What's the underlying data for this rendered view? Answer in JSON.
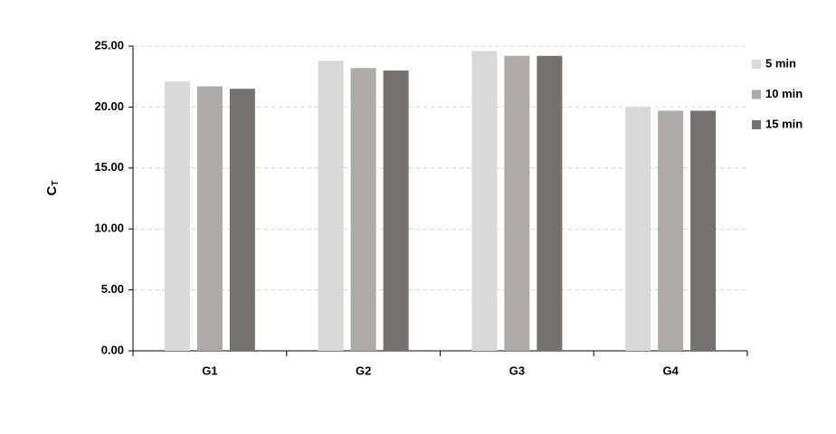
{
  "chart_data": {
    "type": "bar",
    "ylabel": {
      "main": "C",
      "sub": "T"
    },
    "categories": [
      "G1",
      "G2",
      "G3",
      "G4"
    ],
    "series": [
      {
        "name": "5 min",
        "color": "#d9d9d9",
        "values": [
          22.1,
          23.8,
          24.6,
          20.0
        ]
      },
      {
        "name": "10 min",
        "color": "#aeaaaa",
        "values": [
          21.7,
          23.2,
          24.2,
          19.7
        ]
      },
      {
        "name": "15 min",
        "color": "#767171",
        "values": [
          21.5,
          23.0,
          24.2,
          19.7
        ]
      }
    ],
    "ylim": [
      0,
      25
    ],
    "yticks": [
      {
        "value": 0,
        "label": "0.00"
      },
      {
        "value": 5,
        "label": "5.00"
      },
      {
        "value": 10,
        "label": "10.00"
      },
      {
        "value": 15,
        "label": "15.00"
      },
      {
        "value": 20,
        "label": "20.00"
      },
      {
        "value": 25,
        "label": "25.00"
      }
    ],
    "grid": true
  }
}
